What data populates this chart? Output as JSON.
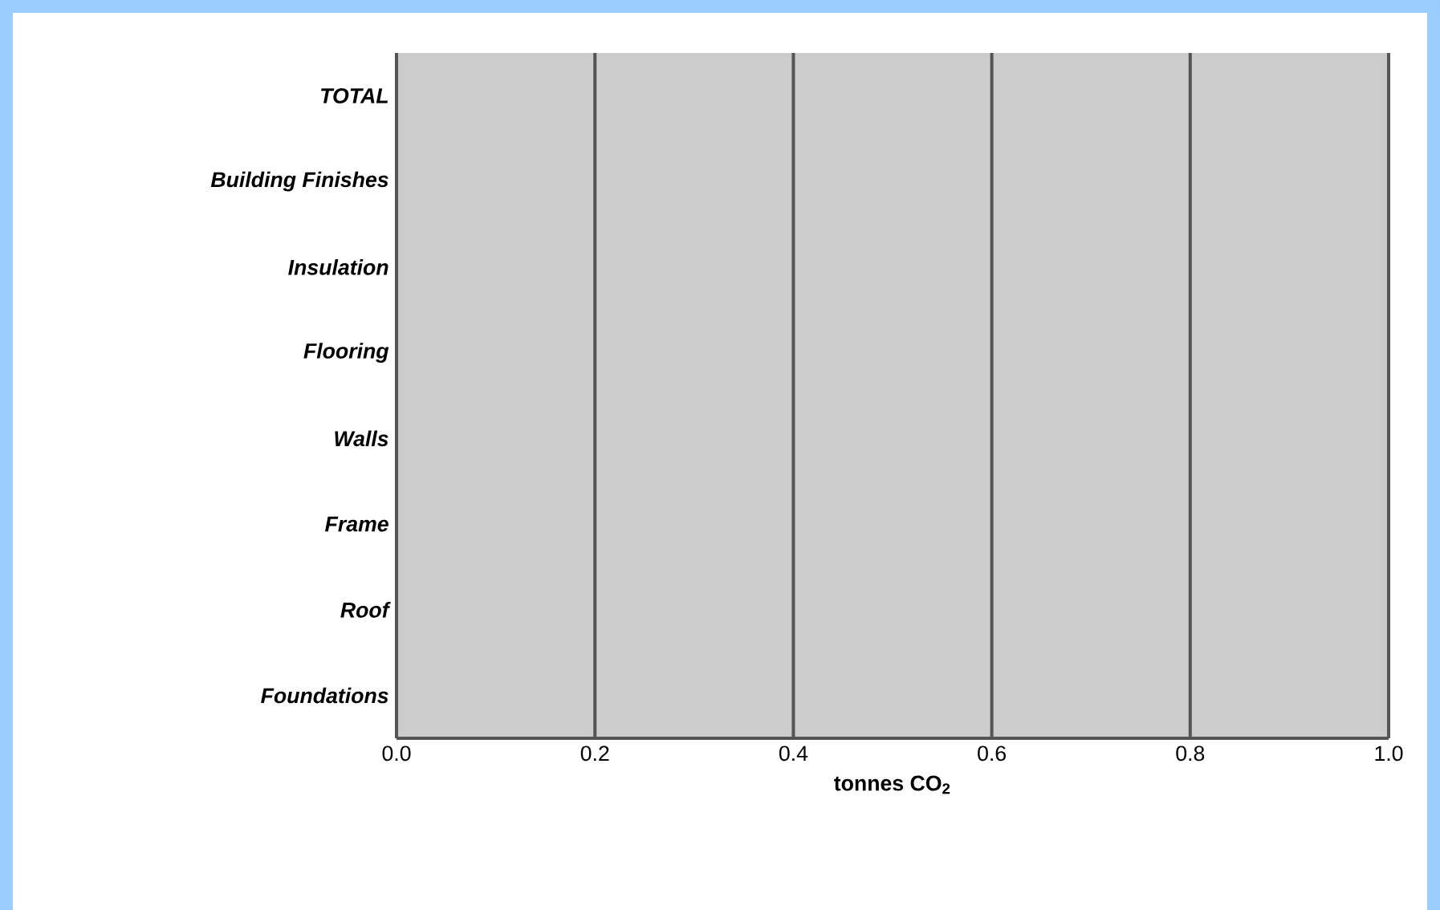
{
  "chart_data": {
    "type": "bar",
    "orientation": "horizontal",
    "xlabel": "tonnes CO$_{2}$",
    "categories": [
      "TOTAL",
      "Building Finishes",
      "Insulation",
      "Flooring",
      "Walls",
      "Frame",
      "Roof",
      "Foundations"
    ],
    "values": [
      null,
      null,
      null,
      null,
      null,
      null,
      null,
      null
    ],
    "xlim": [
      0,
      1.0
    ],
    "xticks": [
      {
        "value": 0,
        "label": "0.0"
      },
      {
        "value": 0.2,
        "label": "0.2"
      },
      {
        "value": 0.4,
        "label": "0.4"
      },
      {
        "value": 0.6,
        "label": "0.6"
      },
      {
        "value": 0.8,
        "label": "0.8"
      },
      {
        "value": 1.0,
        "label": "1.0"
      }
    ],
    "grid": "x"
  }
}
